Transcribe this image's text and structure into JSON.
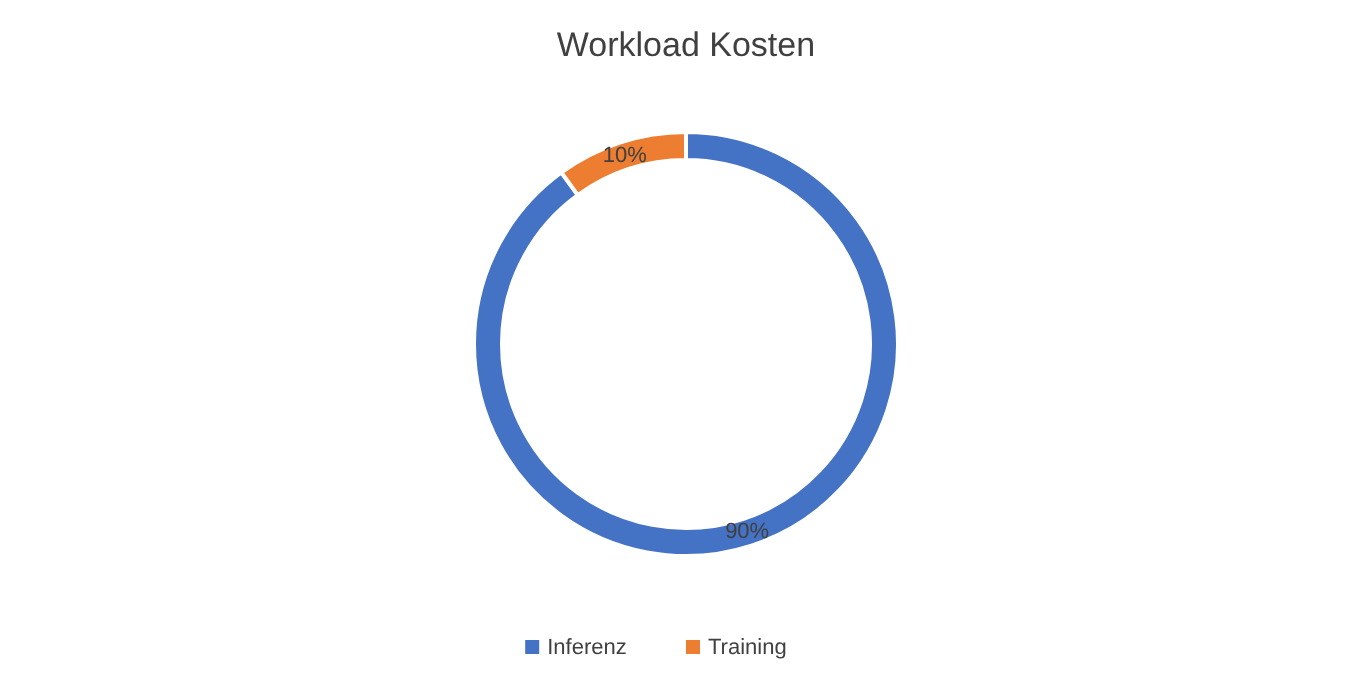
{
  "chart_data": {
    "type": "donut",
    "title": "Workload Kosten",
    "categories": [
      "Inferenz",
      "Training"
    ],
    "values": [
      90,
      10
    ],
    "colors": [
      "#4472c4",
      "#ed7d31"
    ],
    "value_labels": [
      "90%",
      "10%"
    ],
    "legend": "bottom"
  }
}
